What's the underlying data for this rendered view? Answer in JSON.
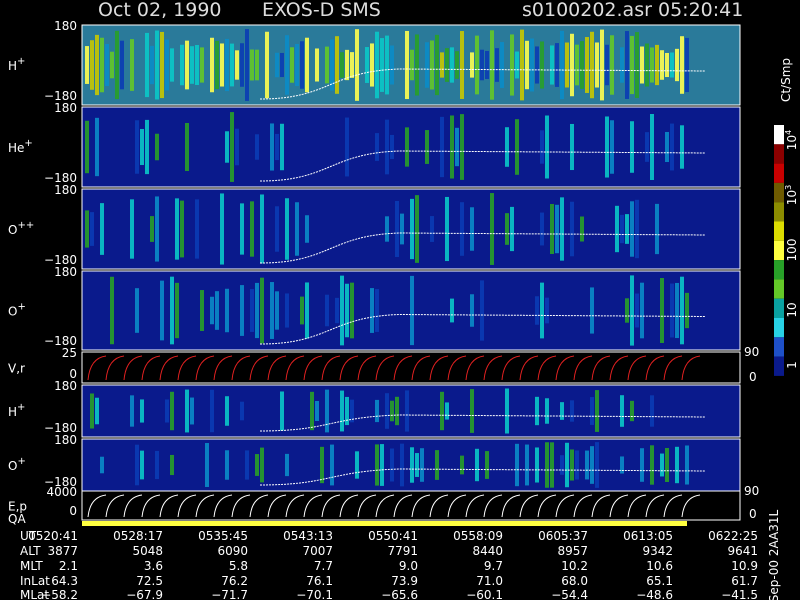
{
  "header": {
    "date": "Oct 02, 1990",
    "instrument": "EXOS-D SMS",
    "file": "s0100202.asr",
    "time": "05:20:41"
  },
  "panels": [
    {
      "label": "H",
      "sup": "+",
      "top": "180",
      "bottom": "−180"
    },
    {
      "label": "He",
      "sup": "+",
      "top": "180",
      "bottom": "−180"
    },
    {
      "label": "O",
      "sup": "++",
      "top": "180",
      "bottom": "−180"
    },
    {
      "label": "O",
      "sup": "+",
      "top": "180",
      "bottom": "−180"
    },
    {
      "label": "V,r",
      "sup": "",
      "top": "25",
      "bottom": "0",
      "right_top": "90",
      "right_bottom": "0"
    },
    {
      "label": "H",
      "sup": "+",
      "top": "180",
      "bottom": "−180"
    },
    {
      "label": "O",
      "sup": "+",
      "top": "180",
      "bottom": "−180"
    },
    {
      "label": "E,p",
      "sup": "",
      "top": "4000",
      "bottom": "0",
      "right_top": "90",
      "right_bottom": "0"
    }
  ],
  "qa_label": "QA",
  "colorbar": {
    "unit": "Ct/Smp",
    "labels": [
      {
        "base": "10",
        "exp": "4"
      },
      {
        "base": "10",
        "exp": "3"
      },
      {
        "base": "100",
        "exp": ""
      },
      {
        "base": "10",
        "exp": ""
      },
      {
        "base": "1",
        "exp": ""
      }
    ]
  },
  "table": {
    "rows": [
      {
        "label": "UT",
        "values": [
          "0520:41",
          "0528:17",
          "0535:45",
          "0543:13",
          "0550:41",
          "0558:09",
          "0605:37",
          "0613:05",
          "0622:25"
        ]
      },
      {
        "label": "ALT",
        "values": [
          "3877",
          "5048",
          "6090",
          "7007",
          "7791",
          "8440",
          "8957",
          "9342",
          "9641"
        ]
      },
      {
        "label": "MLT",
        "values": [
          "2.1",
          "3.6",
          "5.8",
          "7.7",
          "9.0",
          "9.7",
          "10.2",
          "10.6",
          "10.9"
        ]
      },
      {
        "label": "InLat",
        "values": [
          "64.3",
          "72.5",
          "76.2",
          "76.1",
          "73.9",
          "71.0",
          "68.0",
          "65.1",
          "61.7"
        ]
      },
      {
        "label": "MLat",
        "values": [
          "−58.2",
          "−67.9",
          "−71.7",
          "−70.1",
          "−65.6",
          "−60.1",
          "−54.4",
          "−48.6",
          "−41.5"
        ]
      }
    ]
  },
  "code": "Sep-00 2AA31L"
}
